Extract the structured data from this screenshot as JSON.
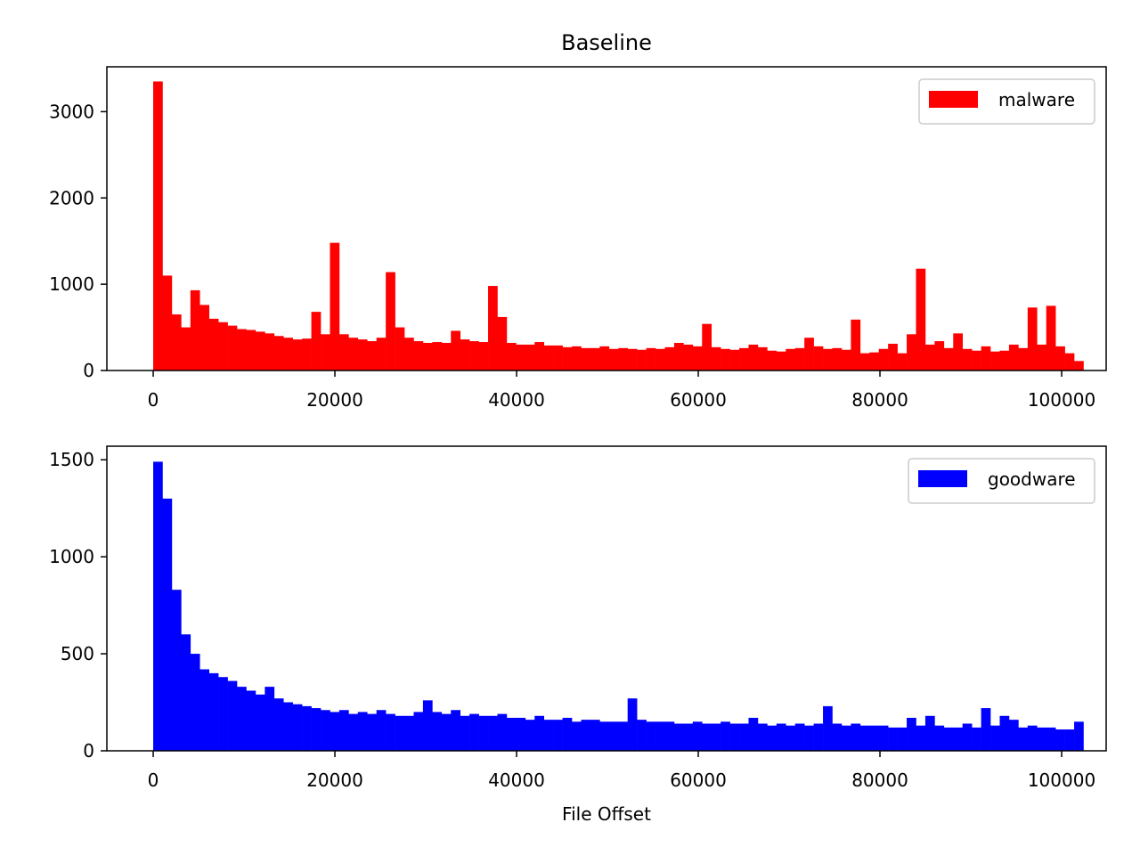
{
  "chart_data": [
    {
      "type": "histogram",
      "title": "Baseline",
      "bins": [
        0,
        1024,
        2048,
        3072,
        4096,
        5120,
        6144,
        7168,
        8192,
        9216,
        10240,
        11264,
        12288,
        13312,
        14336,
        15360,
        16384,
        17408,
        18432,
        19456,
        20480,
        21504,
        22528,
        23552,
        24576,
        25600,
        26624,
        27648,
        28672,
        29696,
        30720,
        31744,
        32768,
        33792,
        34816,
        35840,
        36864,
        37888,
        38912,
        39936,
        40960,
        41984,
        43008,
        44032,
        45056,
        46080,
        47104,
        48128,
        49152,
        50176,
        51200,
        52224,
        53248,
        54272,
        55296,
        56320,
        57344,
        58368,
        59392,
        60416,
        61440,
        62464,
        63488,
        64512,
        65536,
        66560,
        67584,
        68608,
        69632,
        70656,
        71680,
        72704,
        73728,
        74752,
        75776,
        76800,
        77824,
        78848,
        79872,
        80896,
        81920,
        82944,
        83968,
        84992,
        86016,
        87040,
        88064,
        89088,
        90112,
        91136,
        92160,
        93184,
        94208,
        95232,
        96256,
        97280,
        98304,
        99328,
        100352,
        101376,
        102400
      ],
      "series": [
        {
          "name": "malware",
          "color": "#ff0000",
          "values": [
            3350,
            1100,
            650,
            500,
            930,
            760,
            600,
            560,
            520,
            480,
            470,
            450,
            430,
            400,
            380,
            360,
            370,
            680,
            420,
            1480,
            420,
            380,
            360,
            340,
            380,
            1140,
            500,
            380,
            340,
            320,
            330,
            320,
            460,
            360,
            340,
            330,
            980,
            620,
            320,
            300,
            300,
            330,
            290,
            290,
            270,
            280,
            260,
            260,
            280,
            250,
            260,
            250,
            240,
            260,
            250,
            270,
            320,
            300,
            280,
            540,
            270,
            250,
            240,
            260,
            300,
            270,
            230,
            220,
            250,
            260,
            380,
            280,
            250,
            260,
            240,
            590,
            200,
            210,
            250,
            310,
            200,
            420,
            1180,
            300,
            340,
            260,
            430,
            250,
            230,
            280,
            220,
            230,
            300,
            260,
            730,
            300,
            750,
            280,
            200,
            110
          ]
        }
      ],
      "xlim": [
        -5100,
        104900
      ],
      "xticks": [
        0,
        20000,
        40000,
        60000,
        80000,
        100000
      ],
      "ylim": [
        0,
        3520
      ],
      "yticks": [
        0,
        1000,
        2000,
        3000
      ],
      "legend": "upper right"
    },
    {
      "type": "histogram",
      "x_label": "File Offset",
      "bins": [
        0,
        1024,
        2048,
        3072,
        4096,
        5120,
        6144,
        7168,
        8192,
        9216,
        10240,
        11264,
        12288,
        13312,
        14336,
        15360,
        16384,
        17408,
        18432,
        19456,
        20480,
        21504,
        22528,
        23552,
        24576,
        25600,
        26624,
        27648,
        28672,
        29696,
        30720,
        31744,
        32768,
        33792,
        34816,
        35840,
        36864,
        37888,
        38912,
        39936,
        40960,
        41984,
        43008,
        44032,
        45056,
        46080,
        47104,
        48128,
        49152,
        50176,
        51200,
        52224,
        53248,
        54272,
        55296,
        56320,
        57344,
        58368,
        59392,
        60416,
        61440,
        62464,
        63488,
        64512,
        65536,
        66560,
        67584,
        68608,
        69632,
        70656,
        71680,
        72704,
        73728,
        74752,
        75776,
        76800,
        77824,
        78848,
        79872,
        80896,
        81920,
        82944,
        83968,
        84992,
        86016,
        87040,
        88064,
        89088,
        90112,
        91136,
        92160,
        93184,
        94208,
        95232,
        96256,
        97280,
        98304,
        99328,
        100352,
        101376,
        102400
      ],
      "series": [
        {
          "name": "goodware",
          "color": "#0000ff",
          "values": [
            1490,
            1300,
            830,
            600,
            500,
            420,
            400,
            380,
            360,
            330,
            310,
            290,
            330,
            270,
            250,
            240,
            230,
            220,
            210,
            200,
            210,
            190,
            200,
            190,
            210,
            190,
            180,
            180,
            200,
            260,
            200,
            190,
            210,
            180,
            190,
            180,
            180,
            190,
            170,
            170,
            160,
            180,
            160,
            160,
            170,
            150,
            160,
            160,
            150,
            150,
            150,
            270,
            160,
            150,
            150,
            150,
            140,
            140,
            150,
            140,
            140,
            150,
            140,
            140,
            170,
            140,
            130,
            140,
            130,
            140,
            130,
            140,
            230,
            140,
            130,
            140,
            130,
            130,
            130,
            120,
            120,
            170,
            130,
            180,
            130,
            120,
            120,
            140,
            120,
            220,
            130,
            180,
            160,
            120,
            130,
            120,
            120,
            110,
            110,
            150
          ]
        }
      ],
      "xlim": [
        -5100,
        104900
      ],
      "xticks": [
        0,
        20000,
        40000,
        60000,
        80000,
        100000
      ],
      "ylim": [
        0,
        1570
      ],
      "yticks": [
        0,
        500,
        1000,
        1500
      ],
      "legend": "upper right"
    }
  ]
}
